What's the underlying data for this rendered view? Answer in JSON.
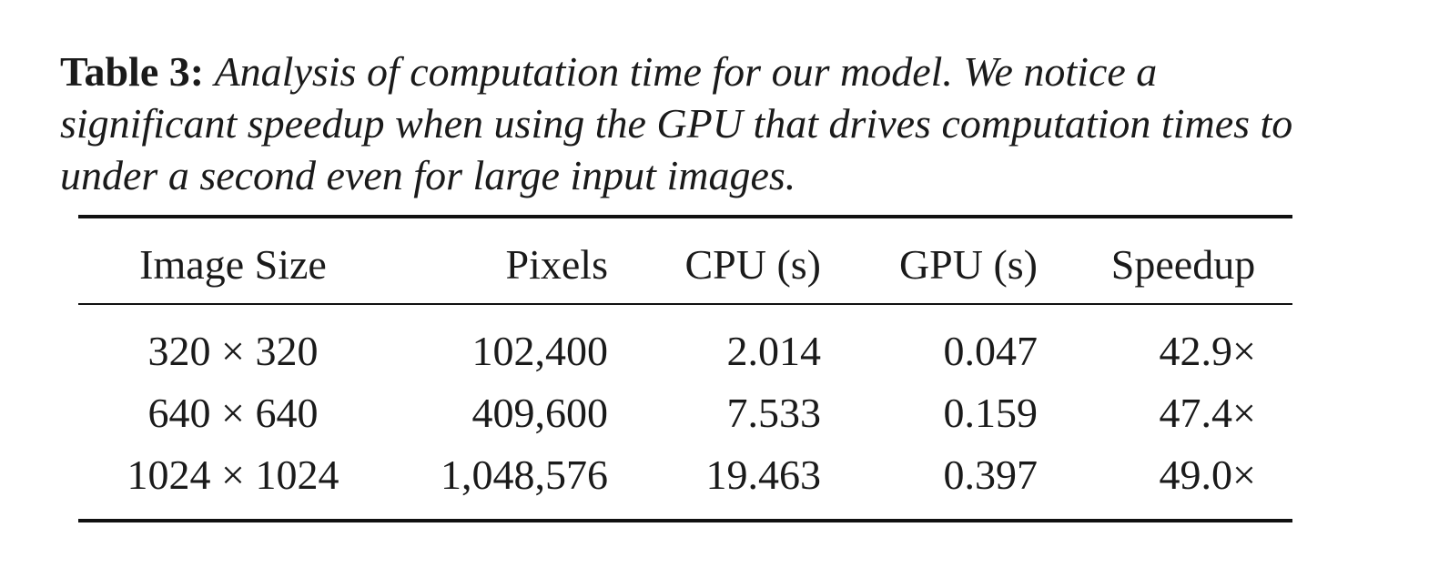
{
  "caption": {
    "label": "Table 3:",
    "text": "Analysis of computation time for our model. We notice a significant speedup when using the GPU that drives computation times to under a second even for large input images."
  },
  "table": {
    "headers": [
      "Image Size",
      "Pixels",
      "CPU (s)",
      "GPU (s)",
      "Speedup"
    ],
    "rows": [
      [
        "320 × 320",
        "102,400",
        "2.014",
        "0.047",
        "42.9×"
      ],
      [
        "640 × 640",
        "409,600",
        "7.533",
        "0.159",
        "47.4×"
      ],
      [
        "1024 × 1024",
        "1,048,576",
        "19.463",
        "0.397",
        "49.0×"
      ]
    ]
  }
}
